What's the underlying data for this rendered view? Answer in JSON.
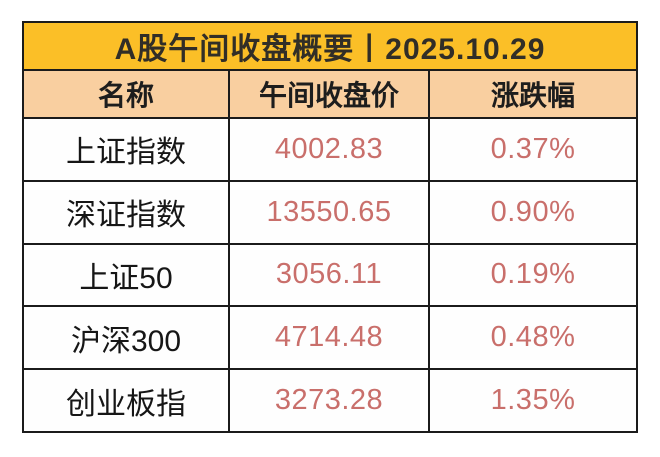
{
  "title": "A股午间收盘概要丨2025.10.29",
  "colors": {
    "title_background": "#fbbf27",
    "header_background": "#f9cfa0",
    "border": "#1b1b1b",
    "value_text": "#c96f6b",
    "name_text": "#161616",
    "page_background": "#ffffff"
  },
  "chart_data": {
    "type": "table",
    "title": "A股午间收盘概要丨2025.10.29",
    "columns": [
      "名称",
      "午间收盘价",
      "涨跌幅"
    ],
    "rows": [
      {
        "name": "上证指数",
        "close": "4002.83",
        "change": "0.37%"
      },
      {
        "name": "深证指数",
        "close": "13550.65",
        "change": "0.90%"
      },
      {
        "name": "上证50",
        "close": "3056.11",
        "change": "0.19%"
      },
      {
        "name": "沪深300",
        "close": "4714.48",
        "change": "0.48%"
      },
      {
        "name": "创业板指",
        "close": "3273.28",
        "change": "1.35%"
      }
    ]
  }
}
